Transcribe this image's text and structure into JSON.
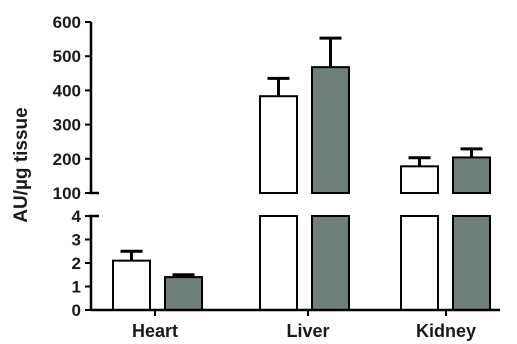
{
  "chart_data": {
    "type": "bar",
    "ylabel": "AU/µg tissue",
    "categories": [
      "Heart",
      "Liver",
      "Kidney"
    ],
    "series": [
      {
        "color": "#ffffff",
        "values": [
          2.1,
          383,
          178
        ],
        "errors": [
          0.4,
          52,
          25
        ]
      },
      {
        "color": "#6e8078",
        "values": [
          1.4,
          468,
          204
        ],
        "errors": [
          0.1,
          85,
          25
        ]
      }
    ],
    "y_axis_break": true,
    "y_lower_segment": {
      "ylim": [
        0,
        4
      ],
      "ticks": [
        "0",
        "1",
        "2",
        "3",
        "4"
      ]
    },
    "y_upper_segment": {
      "ylim": [
        100,
        600
      ],
      "ticks": [
        "100",
        "200",
        "300",
        "400",
        "500",
        "600"
      ]
    },
    "grid": false,
    "legend": "none"
  }
}
